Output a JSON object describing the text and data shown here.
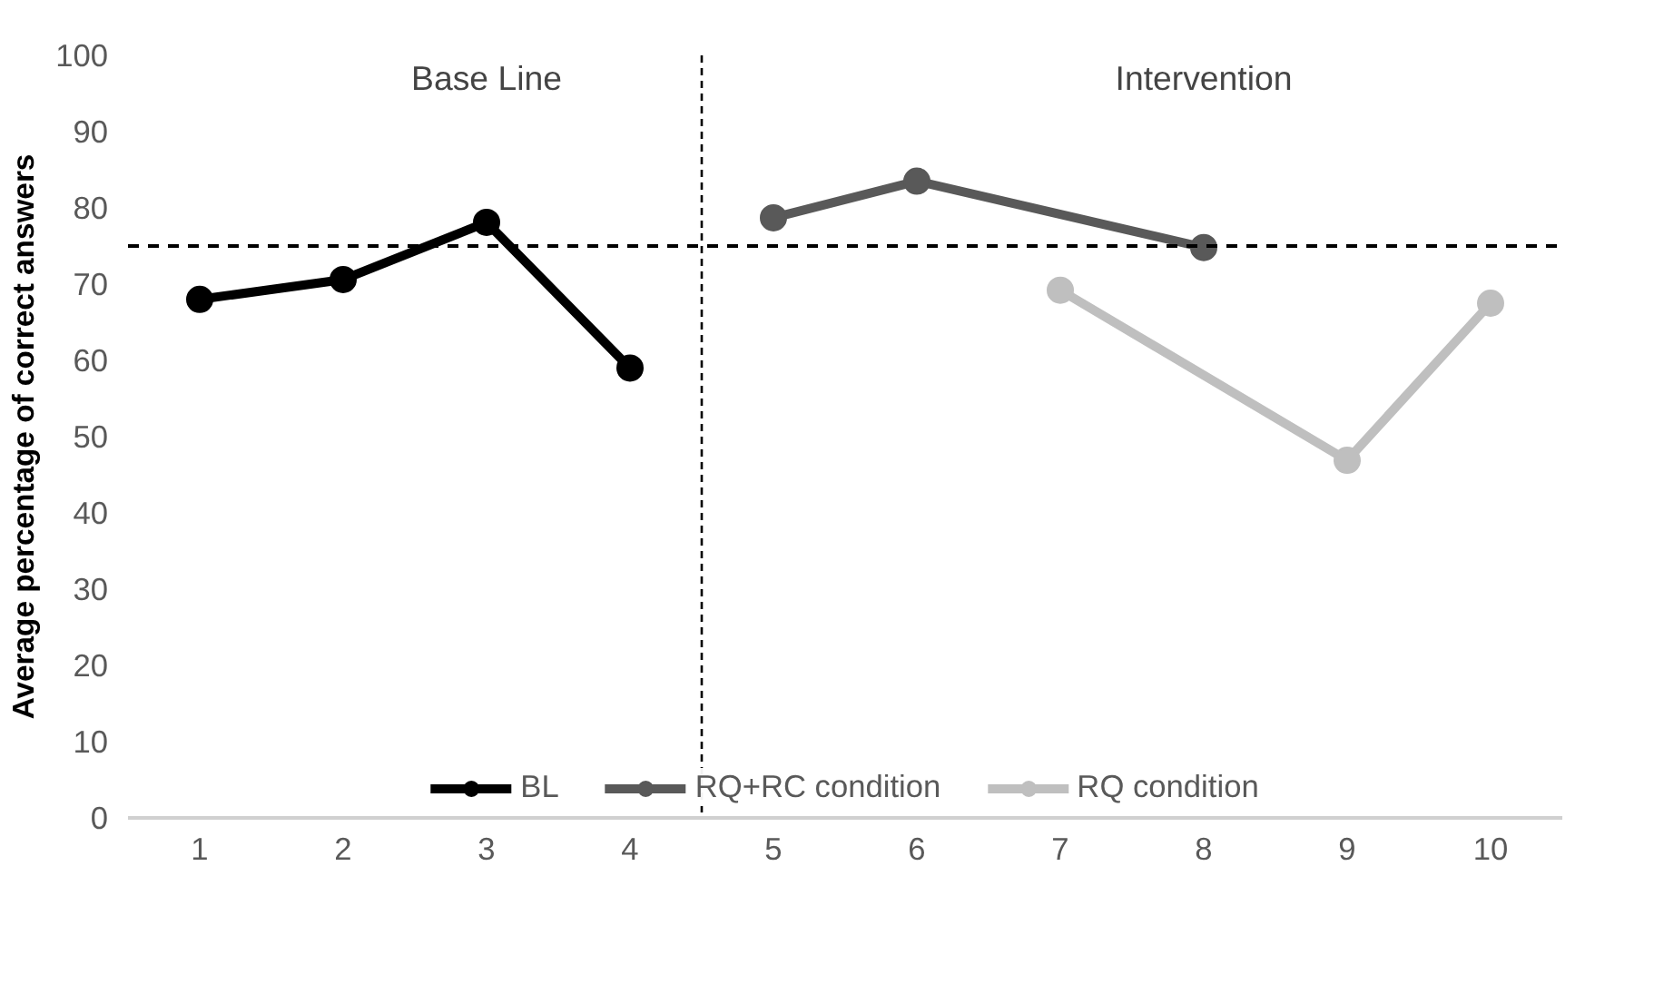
{
  "chart_data": {
    "type": "line",
    "ylabel": "Average percentage of correct answers",
    "annotations": [
      "Base Line",
      "Intervention"
    ],
    "xlim": [
      0.5,
      10.5
    ],
    "xticks": [
      1,
      2,
      3,
      4,
      5,
      6,
      7,
      8,
      9,
      10
    ],
    "ylim": [
      0,
      100
    ],
    "yticks": [
      0,
      10,
      20,
      30,
      40,
      50,
      60,
      70,
      80,
      90,
      100
    ],
    "grid": false,
    "legend": "bottom",
    "marker": "circle",
    "line_style": "solid",
    "series": [
      {
        "name": "BL",
        "color": "#000000",
        "x": [
          1,
          2,
          3,
          4
        ],
        "values": [
          68,
          70.6,
          78.1,
          59
        ]
      },
      {
        "name": "RQ+RC condition",
        "color": "#595959",
        "x": [
          5,
          6,
          8
        ],
        "values": [
          78.7,
          83.5,
          74.8
        ]
      },
      {
        "name": "RQ condition",
        "color": "#bfbfbf",
        "x": [
          7,
          9,
          10
        ],
        "values": [
          69.2,
          46.9,
          67.5
        ]
      }
    ],
    "ref_lines": [
      {
        "axis": "y",
        "value": 75,
        "color": "#000000",
        "line_style": "dashed"
      },
      {
        "axis": "x",
        "value": 4.5,
        "color": "#000000",
        "line_style": "dotted"
      }
    ]
  }
}
